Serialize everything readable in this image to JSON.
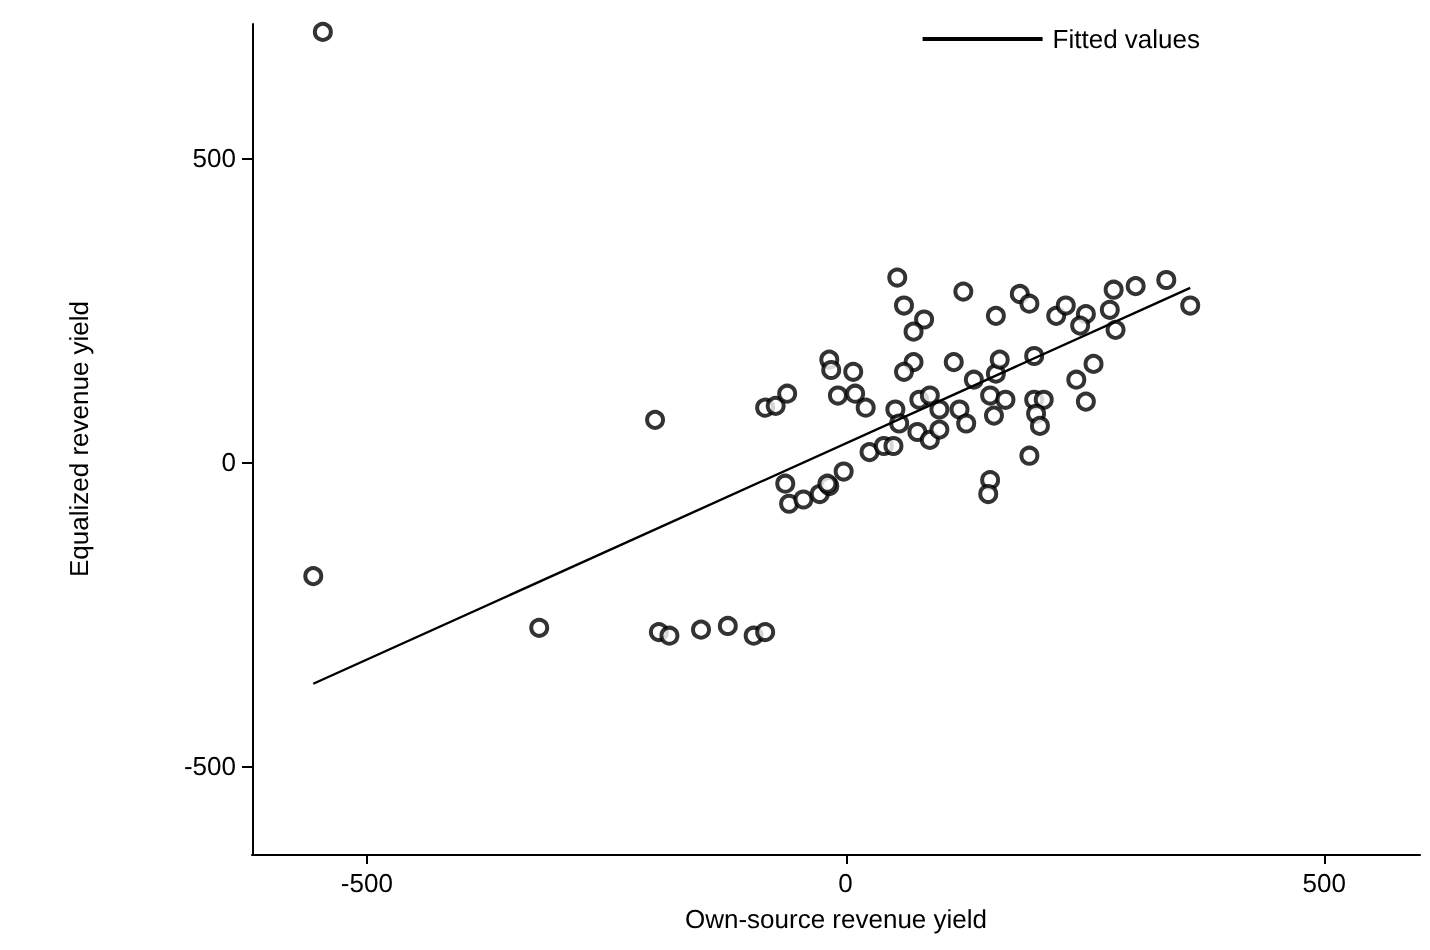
{
  "chart_data": {
    "type": "scatter",
    "xlabel": "Own-source revenue yield",
    "ylabel": "Equalized revenue yield",
    "xlim": [
      -620,
      600
    ],
    "xticks": [
      -500,
      0,
      500
    ],
    "ylim": [
      -645,
      720
    ],
    "yticks": [
      -500,
      0,
      500
    ],
    "grid": false,
    "legend": "top right",
    "series": [
      {
        "marker": "circle",
        "color": "#000000",
        "x": [
          -546,
          -556,
          -320,
          -195,
          -184,
          -151,
          -123,
          -96,
          -84,
          -199,
          -84,
          -73,
          -61,
          -17,
          -15,
          8,
          -8,
          10,
          21,
          -63,
          -59,
          -44,
          -27,
          -17,
          54,
          61,
          82,
          71,
          123,
          157,
          182,
          192,
          220,
          230,
          251,
          245,
          280,
          303,
          335,
          360,
          276,
          282,
          259,
          241,
          251,
          192,
          151,
          149,
          197,
          113,
          71,
          61,
          52,
          77,
          88,
          98,
          119,
          134,
          157,
          151,
          167,
          126,
          155,
          197,
          207,
          199,
          203,
          75,
          88,
          98,
          56,
          25,
          40,
          50,
          -2,
          -19,
          161
        ],
        "values": [
          707,
          -188,
          -273,
          -280,
          -286,
          -276,
          -270,
          -286,
          -280,
          69,
          89,
          92,
          112,
          168,
          151,
          148,
          109,
          112,
          89,
          -36,
          -69,
          -62,
          -53,
          -40,
          303,
          257,
          234,
          214,
          280,
          240,
          276,
          260,
          240,
          257,
          243,
          224,
          283,
          289,
          299,
          257,
          250,
          217,
          161,
          135,
          99,
          10,
          -30,
          -53,
          174,
          164,
          164,
          148,
          86,
          102,
          109,
          86,
          86,
          135,
          145,
          109,
          102,
          63,
          76,
          102,
          102,
          79,
          59,
          49,
          36,
          53,
          63,
          16,
          26,
          26,
          -16,
          -36,
          168
        ]
      },
      {
        "type": "line",
        "marker": "none",
        "line_style": "solid",
        "name": "Fitted values",
        "color": "#000000",
        "x": [
          -556,
          360
        ],
        "values": [
          -365,
          286
        ]
      }
    ]
  }
}
